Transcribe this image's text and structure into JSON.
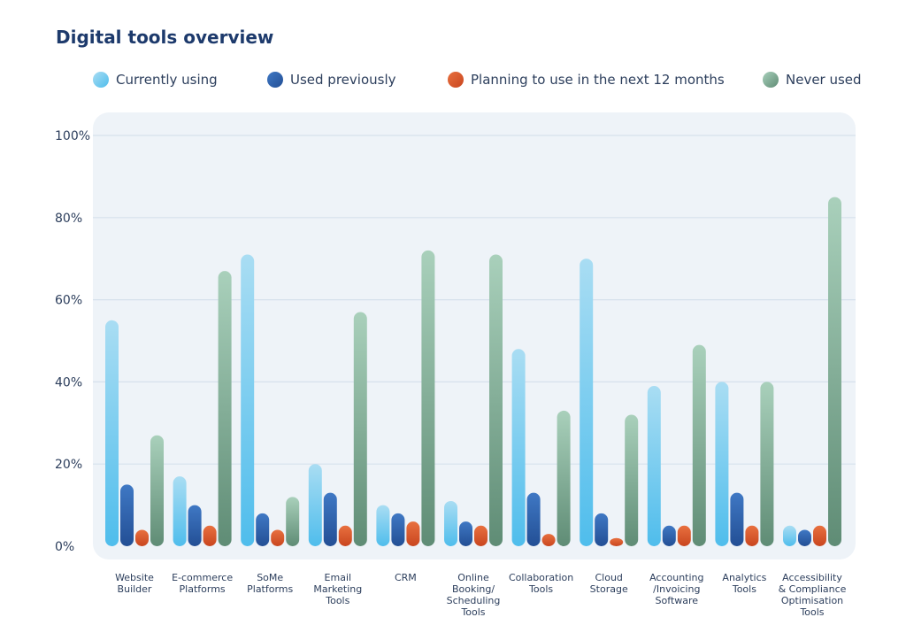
{
  "chart_data": {
    "type": "bar",
    "title": "Digital tools overview",
    "xlabel": "",
    "ylabel": "",
    "ylim": [
      0,
      100
    ],
    "yticks": [
      "0%",
      "20%",
      "40%",
      "60%",
      "80%",
      "100%"
    ],
    "grid": true,
    "legend_position": "top",
    "categories": [
      [
        "Website",
        "Builder"
      ],
      [
        "E-commerce",
        "Platforms"
      ],
      [
        "SoMe",
        "Platforms"
      ],
      [
        "Email",
        "Marketing",
        "Tools"
      ],
      [
        "CRM"
      ],
      [
        "Online",
        "Booking/",
        "Scheduling",
        "Tools"
      ],
      [
        "Collaboration",
        "Tools"
      ],
      [
        "Cloud",
        "Storage"
      ],
      [
        "Accounting",
        "/Invoicing",
        "Software"
      ],
      [
        "Analytics",
        "Tools"
      ],
      [
        "Accessibility",
        "& Compliance",
        "Optimisation",
        "Tools"
      ]
    ],
    "series": [
      {
        "name": "Currently using",
        "color": "#4fbdec",
        "light": "#a9ddf3",
        "values": [
          55,
          17,
          71,
          20,
          10,
          11,
          48,
          70,
          39,
          40,
          5
        ]
      },
      {
        "name": "Used previously",
        "color": "#234f95",
        "light": "#3f78c4",
        "values": [
          15,
          10,
          8,
          13,
          8,
          6,
          13,
          8,
          5,
          13,
          4
        ]
      },
      {
        "name": "Planning to use in the next 12 months",
        "color": "#c9461f",
        "light": "#e8703f",
        "values": [
          4,
          5,
          4,
          5,
          6,
          5,
          3,
          2,
          5,
          5,
          5
        ]
      },
      {
        "name": "Never used",
        "color": "#5f8c75",
        "light": "#a9d0bb",
        "values": [
          27,
          67,
          12,
          57,
          72,
          71,
          33,
          32,
          49,
          40,
          85
        ]
      }
    ]
  }
}
